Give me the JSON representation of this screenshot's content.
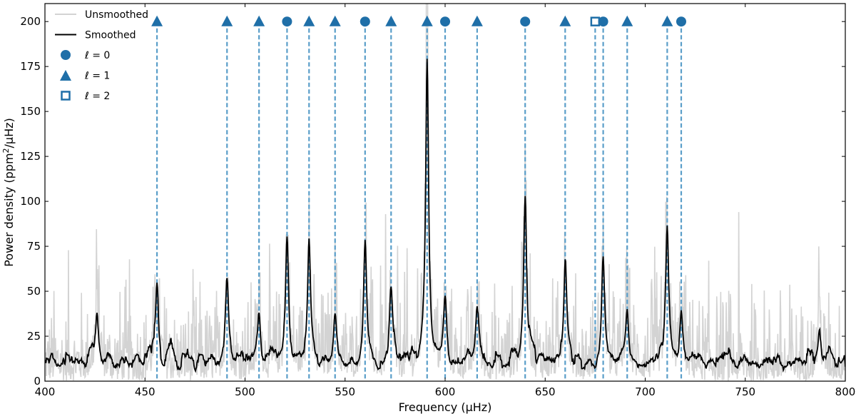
{
  "chart_data": {
    "type": "line",
    "xlabel": "Frequency (μHz)",
    "ylabel_parts": [
      "Power density (ppm",
      "2",
      "/μHz)"
    ],
    "xlim": [
      400,
      800
    ],
    "ylim": [
      0,
      210
    ],
    "xticks": [
      400,
      450,
      500,
      550,
      600,
      650,
      700,
      750,
      800
    ],
    "yticks": [
      0,
      25,
      50,
      75,
      100,
      125,
      150,
      175,
      200
    ],
    "grid": false,
    "legend_position": "top-left",
    "colors": {
      "unsmoothed": "#d3d3d3",
      "smoothed": "#000000",
      "mode": "#1f6fa8",
      "mode_line": "#5a9ec9"
    },
    "legend": [
      {
        "key": "unsmoothed",
        "label": "Unsmoothed",
        "symbol": "line-light"
      },
      {
        "key": "smoothed",
        "label": "Smoothed",
        "symbol": "line-dark"
      },
      {
        "key": "l0",
        "label": "ℓ = 0",
        "symbol": "circle"
      },
      {
        "key": "l1",
        "label": "ℓ = 1",
        "symbol": "triangle"
      },
      {
        "key": "l2",
        "label": "ℓ = 2",
        "symbol": "square-open"
      }
    ],
    "background_level": {
      "smoothed": 10,
      "unsmoothed": 14
    },
    "peaks": [
      {
        "x": 456,
        "y": 48,
        "raw": 50
      },
      {
        "x": 491,
        "y": 53,
        "raw": 55
      },
      {
        "x": 507,
        "y": 38,
        "raw": 45
      },
      {
        "x": 521,
        "y": 80,
        "raw": 85
      },
      {
        "x": 532,
        "y": 75,
        "raw": 80
      },
      {
        "x": 545,
        "y": 37,
        "raw": 47
      },
      {
        "x": 560,
        "y": 79,
        "raw": 84
      },
      {
        "x": 573,
        "y": 43,
        "raw": 48
      },
      {
        "x": 591,
        "y": 178,
        "raw": 210
      },
      {
        "x": 600,
        "y": 40,
        "raw": 42
      },
      {
        "x": 616,
        "y": 37,
        "raw": 41
      },
      {
        "x": 640,
        "y": 102,
        "raw": 105
      },
      {
        "x": 660,
        "y": 64,
        "raw": 70
      },
      {
        "x": 679,
        "y": 72,
        "raw": 75
      },
      {
        "x": 691,
        "y": 40,
        "raw": 44
      },
      {
        "x": 711,
        "y": 87,
        "raw": 92
      },
      {
        "x": 718,
        "y": 38,
        "raw": 40
      },
      {
        "x": 426,
        "y": 39,
        "raw": 50
      },
      {
        "x": 787,
        "y": 28,
        "raw": 40
      }
    ],
    "modes": [
      {
        "x": 456,
        "l": 1
      },
      {
        "x": 491,
        "l": 1
      },
      {
        "x": 507,
        "l": 1
      },
      {
        "x": 521,
        "l": 0
      },
      {
        "x": 532,
        "l": 1
      },
      {
        "x": 545,
        "l": 1
      },
      {
        "x": 560,
        "l": 0
      },
      {
        "x": 573,
        "l": 1
      },
      {
        "x": 591,
        "l": 1
      },
      {
        "x": 600,
        "l": 0
      },
      {
        "x": 616,
        "l": 1
      },
      {
        "x": 640,
        "l": 0
      },
      {
        "x": 660,
        "l": 1
      },
      {
        "x": 675,
        "l": 2
      },
      {
        "x": 679,
        "l": 0
      },
      {
        "x": 691,
        "l": 1
      },
      {
        "x": 711,
        "l": 1
      },
      {
        "x": 718,
        "l": 0
      }
    ]
  }
}
